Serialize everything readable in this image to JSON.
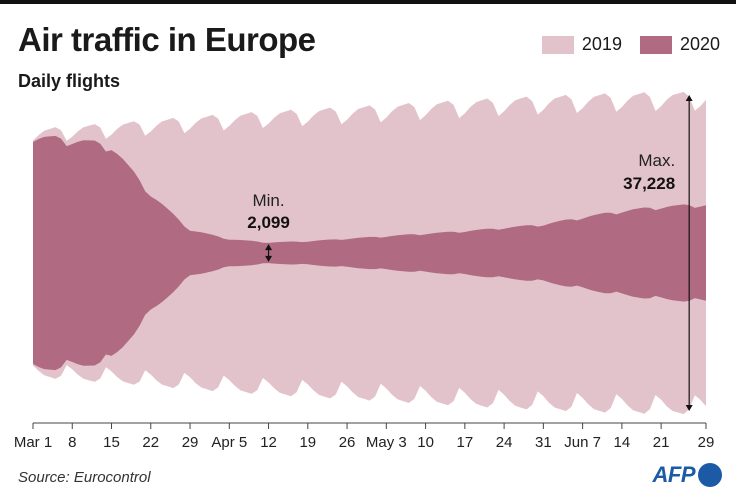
{
  "header": {
    "title": "Air traffic in Europe",
    "subtitle": "Daily flights"
  },
  "legend": [
    {
      "label": "2019",
      "color": "#e3c3cb"
    },
    {
      "label": "2020",
      "color": "#b06a82"
    }
  ],
  "footer": {
    "source": "Source: Eurocontrol",
    "logo_text": "AFP"
  },
  "chart_data": {
    "type": "area",
    "title": "Air traffic in Europe",
    "subtitle": "Daily flights",
    "xlabel": "",
    "ylabel": "",
    "ylim": [
      0,
      37228
    ],
    "grid": false,
    "legend_position": "top-right",
    "x_start": "2020-03-01",
    "x_end": "2020-06-29",
    "x_ticks": [
      "Mar 1",
      "8",
      "15",
      "22",
      "29",
      "Apr 5",
      "12",
      "19",
      "26",
      "May 3",
      "10",
      "17",
      "24",
      "31",
      "Jun 7",
      "14",
      "21",
      "29"
    ],
    "series": [
      {
        "name": "2019",
        "color": "#e3c3cb",
        "weekly_anchors": [
          28500,
          29500,
          30000,
          30800,
          31500,
          32200,
          32800,
          33300,
          33800,
          34300,
          34900,
          35400,
          35900,
          36300,
          36700,
          37000,
          37200,
          37228
        ]
      },
      {
        "name": "2020",
        "color": "#b06a82",
        "weekly_anchors": [
          27500,
          27000,
          25500,
          14000,
          5500,
          3300,
          2500,
          2800,
          3400,
          4000,
          4600,
          5200,
          6000,
          6800,
          8500,
          10000,
          11000,
          11500
        ]
      }
    ],
    "annotations": [
      {
        "label": "Min.",
        "value": "2,099",
        "x": "2020-04-12"
      },
      {
        "label": "Max.",
        "value": "37,228",
        "x": "2020-06-26"
      }
    ]
  }
}
